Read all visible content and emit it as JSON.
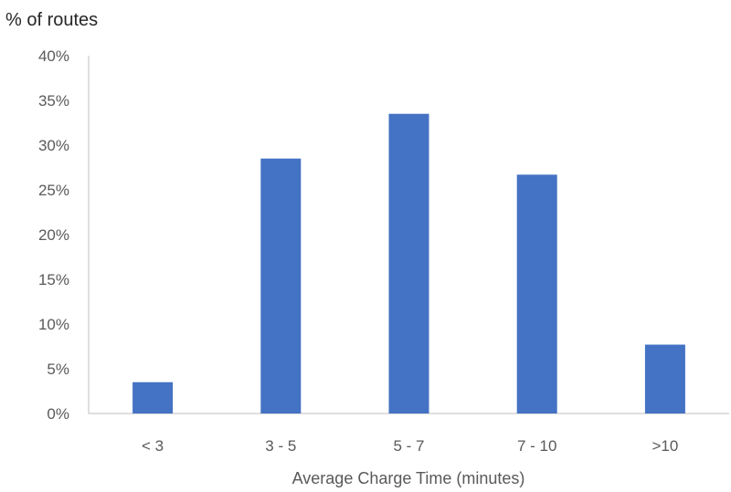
{
  "chart_data": {
    "type": "bar",
    "title": "",
    "ylabel": "% of routes",
    "xlabel": "Average Charge Time (minutes)",
    "categories": [
      "< 3",
      "3 - 5",
      "5 - 7",
      "7 - 10",
      ">10"
    ],
    "values": [
      3.5,
      28.5,
      33.5,
      26.7,
      7.7
    ],
    "ylim": [
      0,
      40
    ],
    "yticks": [
      "0%",
      "5%",
      "10%",
      "15%",
      "20%",
      "25%",
      "30%",
      "35%",
      "40%"
    ],
    "grid": false,
    "legend": "none",
    "bar_color": "#4472C4",
    "axis_color": "#BFBFBF"
  }
}
